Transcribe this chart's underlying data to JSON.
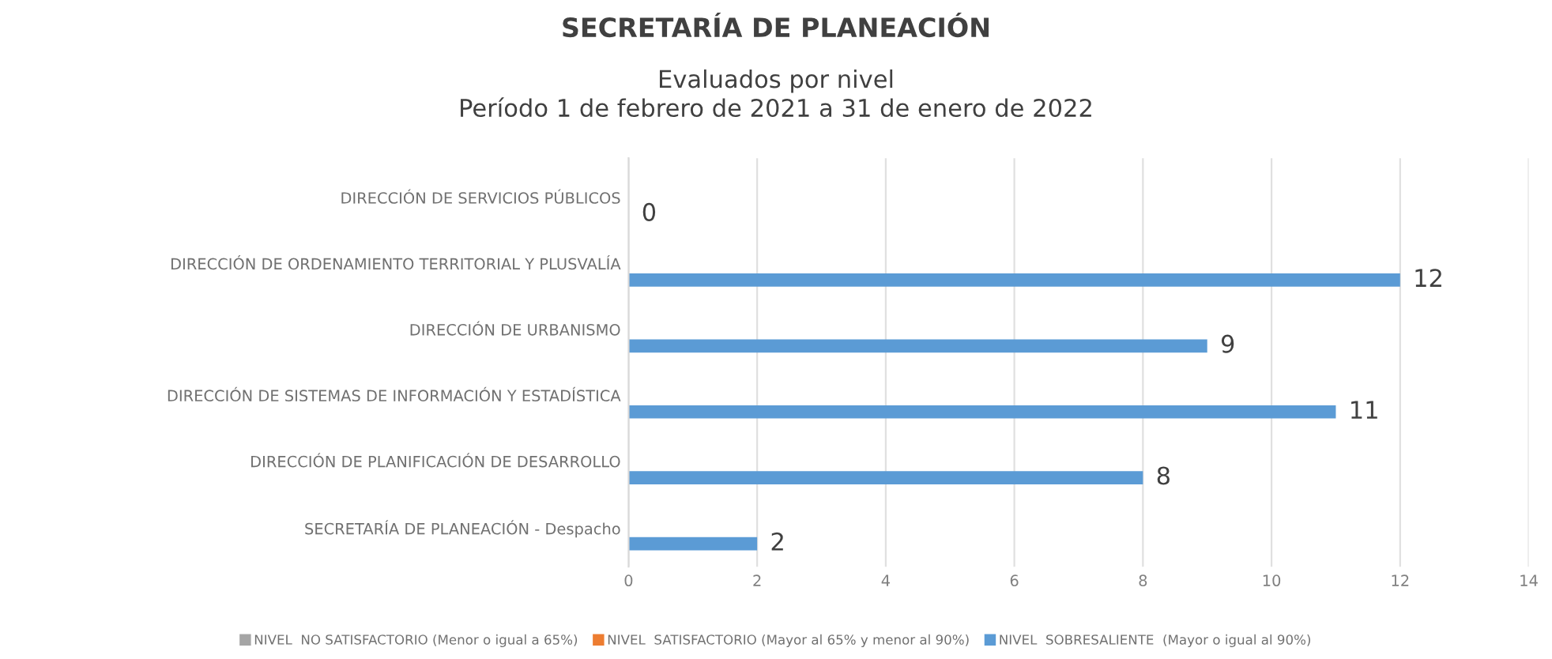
{
  "chart_data": {
    "type": "bar",
    "orientation": "horizontal",
    "title": "SECRETARÍA DE PLANEACIÓN",
    "subtitle": "Evaluados por nivel\nPeríodo 1 de febrero de 2021 a 31 de enero de 2022",
    "categories": [
      "DIRECCIÓN DE SERVICIOS PÚBLICOS",
      "DIRECCIÓN DE ORDENAMIENTO TERRITORIAL Y PLUSVALÍA",
      "DIRECCIÓN DE URBANISMO",
      "DIRECCIÓN DE SISTEMAS DE INFORMACIÓN Y ESTADÍSTICA",
      "DIRECCIÓN DE PLANIFICACIÓN DE DESARROLLO",
      "SECRETARÍA DE PLANEACIÓN - Despacho"
    ],
    "series": [
      {
        "name": "NIVEL  NO SATISFACTORIO (Menor o igual a 65%)",
        "color": "#a5a5a5",
        "values": [
          null,
          null,
          null,
          null,
          null,
          null
        ]
      },
      {
        "name": "NIVEL  SATISFACTORIO (Mayor al 65% y menor al 90%)",
        "color": "#ed7d31",
        "values": [
          null,
          null,
          null,
          null,
          null,
          null
        ]
      },
      {
        "name": "NIVEL  SOBRESALIENTE  (Mayor o igual al 90%)",
        "color": "#5b9bd5",
        "values": [
          0,
          12,
          9,
          11,
          8,
          2
        ]
      }
    ],
    "xlim": [
      0,
      14
    ],
    "xticks": [
      0,
      2,
      4,
      6,
      8,
      10,
      12,
      14
    ],
    "grid": "x",
    "legend": "bottom",
    "data_labels": true
  }
}
